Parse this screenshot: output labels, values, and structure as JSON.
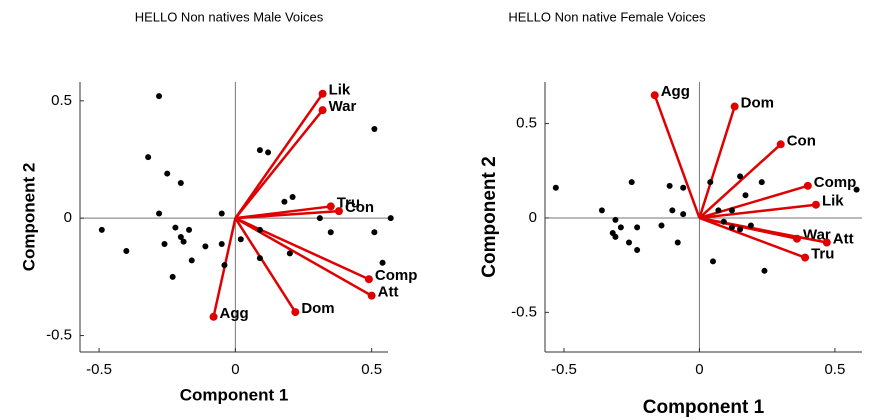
{
  "chart_data": [
    {
      "type": "biplot",
      "title": "HELLO Non natives Male Voices",
      "xlabel": "Component 1",
      "ylabel": "Component 2",
      "xlim": [
        -0.57,
        0.56
      ],
      "ylim": [
        -0.57,
        0.58
      ],
      "xticks": [
        -0.5,
        0,
        0.5
      ],
      "yticks": [
        -0.5,
        0,
        0.5
      ],
      "point_color": "#000000",
      "vector_color": "#e00000",
      "points": {
        "x": [
          -0.28,
          -0.32,
          -0.25,
          -0.2,
          -0.49,
          -0.4,
          -0.28,
          -0.22,
          -0.2,
          -0.17,
          -0.26,
          -0.19,
          -0.11,
          -0.16,
          -0.23,
          -0.05,
          -0.05,
          -0.04,
          0.02,
          0.09,
          0.09,
          0.2,
          0.09,
          0.12,
          0.18,
          0.21,
          0.31,
          0.35,
          0.51,
          0.51,
          0.57,
          0.54
        ],
        "y": [
          0.52,
          0.26,
          0.19,
          0.15,
          -0.05,
          -0.14,
          0.02,
          -0.04,
          -0.08,
          -0.05,
          -0.11,
          -0.1,
          -0.12,
          -0.18,
          -0.25,
          0.02,
          -0.11,
          -0.2,
          -0.09,
          -0.05,
          -0.17,
          -0.15,
          0.29,
          0.28,
          0.07,
          0.09,
          0.0,
          -0.06,
          0.38,
          -0.06,
          0.0,
          -0.19
        ]
      },
      "vectors": {
        "names": [
          "Lik",
          "War",
          "Tru",
          "Con",
          "Comp",
          "Att",
          "Dom",
          "Agg"
        ],
        "x": [
          0.32,
          0.32,
          0.35,
          0.38,
          0.49,
          0.5,
          0.22,
          -0.08
        ],
        "y": [
          0.53,
          0.46,
          0.05,
          0.03,
          -0.26,
          -0.33,
          -0.4,
          -0.42
        ]
      }
    },
    {
      "type": "biplot",
      "title": "HELLO Non native Female Voices",
      "xlabel": "Component 1",
      "ylabel": "Component 2",
      "xlim": [
        -0.57,
        0.6
      ],
      "ylim": [
        -0.71,
        0.72
      ],
      "xticks": [
        -0.5,
        0,
        0.5
      ],
      "yticks": [
        -0.5,
        0,
        0.5
      ],
      "point_color": "#000000",
      "vector_color": "#e00000",
      "points": {
        "x": [
          -0.53,
          -0.36,
          -0.25,
          -0.31,
          -0.29,
          -0.32,
          -0.31,
          -0.23,
          -0.26,
          -0.23,
          -0.14,
          -0.11,
          -0.06,
          -0.1,
          -0.08,
          -0.06,
          0.05,
          0.04,
          0.07,
          0.09,
          0.12,
          0.15,
          0.17,
          0.15,
          0.19,
          0.23,
          0.24,
          0.12,
          0.58
        ],
        "y": [
          0.16,
          0.04,
          0.19,
          -0.01,
          -0.05,
          -0.08,
          -0.1,
          -0.05,
          -0.13,
          -0.17,
          -0.04,
          0.17,
          0.16,
          0.04,
          -0.13,
          0.02,
          -0.23,
          0.19,
          0.04,
          -0.02,
          0.04,
          0.22,
          0.12,
          -0.06,
          -0.04,
          0.19,
          -0.28,
          -0.05,
          0.15
        ]
      },
      "vectors": {
        "names": [
          "Agg",
          "Dom",
          "Con",
          "Comp",
          "Lik",
          "War",
          "Att",
          "Tru"
        ],
        "x": [
          -0.165,
          0.13,
          0.3,
          0.4,
          0.43,
          0.36,
          0.47,
          0.39
        ],
        "y": [
          0.65,
          0.59,
          0.39,
          0.17,
          0.07,
          -0.11,
          -0.13,
          -0.21
        ]
      }
    }
  ]
}
